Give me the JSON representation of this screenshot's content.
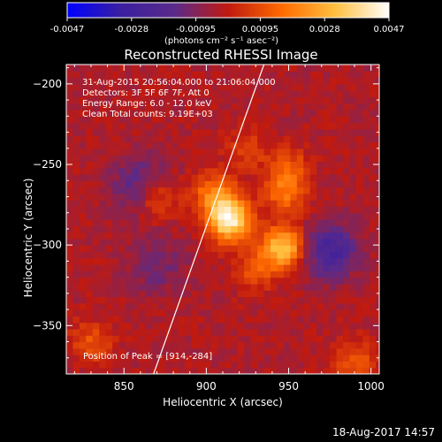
{
  "colorbar": {
    "ticks": [
      "-0.0047",
      "-0.0028",
      "-0.00095",
      "0.00095",
      "0.0028",
      "0.0047"
    ],
    "unit_label": "(photons cm⁻² s⁻¹ asec⁻²)",
    "colors": [
      "#0000ff",
      "#3a1fa0",
      "#5a2a8a",
      "#c01a10",
      "#ff6a00",
      "#ffc040",
      "#ffffff"
    ]
  },
  "chart_data": {
    "type": "heatmap",
    "title": "Reconstructed RHESSI Image",
    "xlabel": "Heliocentric X (arcsec)",
    "ylabel": "Heliocentric Y (arcsec)",
    "xlim": [
      815,
      1005
    ],
    "ylim": [
      -380,
      -188
    ],
    "x_ticks": [
      850,
      900,
      950,
      1000
    ],
    "y_ticks": [
      -200,
      -250,
      -300,
      -350
    ],
    "annotations": [
      "31-Aug-2015 20:56:04.000 to 21:06:04.000",
      "Detectors: 3F 5F 6F 7F, Att 0",
      "Energy Range: 6.0 - 12.0 keV",
      "Clean    Total counts: 9.19E+03"
    ],
    "peak_label": "Position of Peak = [914,-284]",
    "peak": [
      914,
      -284
    ],
    "sources": [
      {
        "x": 914,
        "y": -284,
        "intensity": 0.0047
      },
      {
        "x": 947,
        "y": -301,
        "intensity": 0.0036
      },
      {
        "x": 905,
        "y": -268,
        "intensity": 0.0022
      },
      {
        "x": 948,
        "y": -268,
        "intensity": 0.0018
      },
      {
        "x": 870,
        "y": -270,
        "intensity": 0.0015
      },
      {
        "x": 930,
        "y": -315,
        "intensity": 0.0014
      },
      {
        "x": 950,
        "y": -252,
        "intensity": 0.0014
      },
      {
        "x": 830,
        "y": -360,
        "intensity": 0.0014
      },
      {
        "x": 990,
        "y": -372,
        "intensity": 0.0015
      },
      {
        "x": 925,
        "y": -240,
        "intensity": 0.001
      }
    ],
    "negative_sources": [
      {
        "x": 975,
        "y": -303,
        "intensity": -0.0022
      },
      {
        "x": 860,
        "y": -262,
        "intensity": -0.0015
      },
      {
        "x": 870,
        "y": -312,
        "intensity": -0.001
      }
    ],
    "limb_line": [
      [
        868,
        -380
      ],
      [
        935,
        -188
      ]
    ]
  },
  "timestamp": "18-Aug-2017 14:57"
}
